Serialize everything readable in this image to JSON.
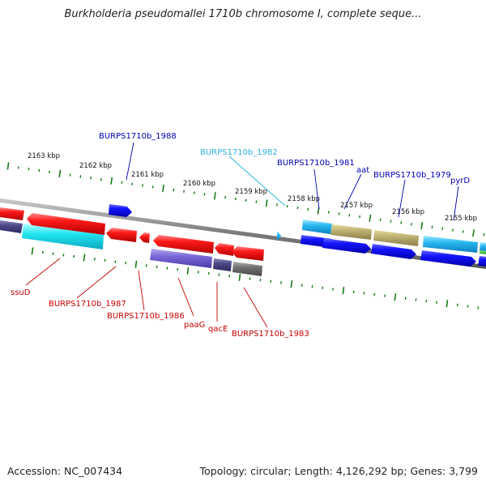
{
  "title": "Burkholderia pseudomallei 1710b chromosome I, complete seque...",
  "footer": {
    "accession": "Accession: NC_007434",
    "summary": "Topology: circular; Length: 4,126,292 bp; Genes: 3,799"
  },
  "colors": {
    "forward_label": "#0000b3",
    "reverse_label": "#c80000",
    "highlight_label": "#2ab0e0",
    "tick": "#1a7a1a",
    "backbone": "#7a7a7a"
  },
  "kbp_labels": [
    "2163 kbp",
    "2162 kbp",
    "2161 kbp",
    "2160 kbp",
    "2159 kbp",
    "2158 kbp",
    "2157 kbp",
    "2156 kbp",
    "2155 kbp"
  ],
  "forward_labels": [
    "BURPS1710b_1988",
    "BURPS1710b_1982",
    "BURPS1710b_1981",
    "aat",
    "BURPS1710b_1979",
    "pyrD"
  ],
  "reverse_labels": [
    "ssuD",
    "BURPS1710b_1987",
    "BURPS1710b_1986",
    "paaG",
    "qacE",
    "BURPS1710b_1983"
  ]
}
